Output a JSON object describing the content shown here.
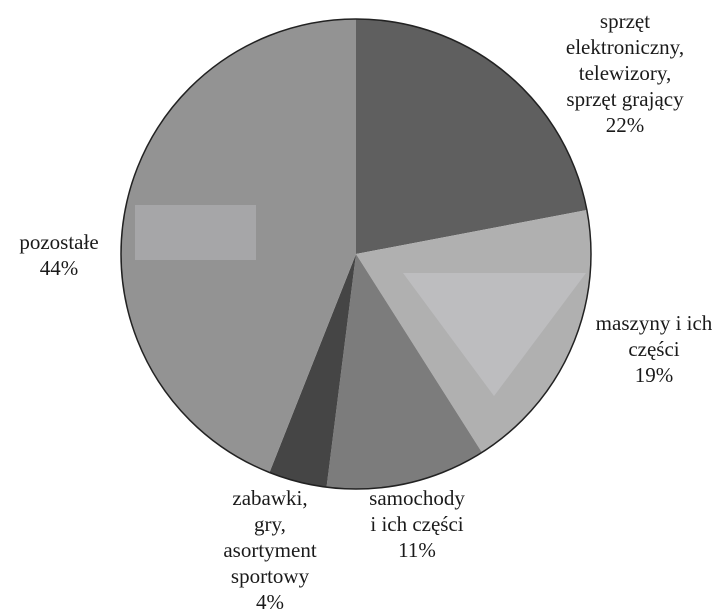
{
  "chart_data": {
    "type": "pie",
    "title": "",
    "start_angle_deg": 0,
    "direction": "clockwise",
    "slices": [
      {
        "label_lines": [
          "sprzęt",
          "elektroniczny,",
          "telewizory,",
          "sprzęt grający"
        ],
        "value": 22,
        "value_label": "22%",
        "color": "#5f5f5f"
      },
      {
        "label_lines": [
          "maszyny i ich",
          "części"
        ],
        "value": 19,
        "value_label": "19%",
        "color": "#b0b0b0"
      },
      {
        "label_lines": [
          "samochody",
          "i ich części"
        ],
        "value": 11,
        "value_label": "11%",
        "color": "#7c7c7c"
      },
      {
        "label_lines": [
          "zabawki,",
          "gry,",
          "asortyment",
          "sportowy"
        ],
        "value": 4,
        "value_label": "4%",
        "color": "#454545"
      },
      {
        "label_lines": [
          "pozostałe"
        ],
        "value": 44,
        "value_label": "44%",
        "color": "#939393"
      }
    ],
    "legend": "none",
    "grid": false
  }
}
